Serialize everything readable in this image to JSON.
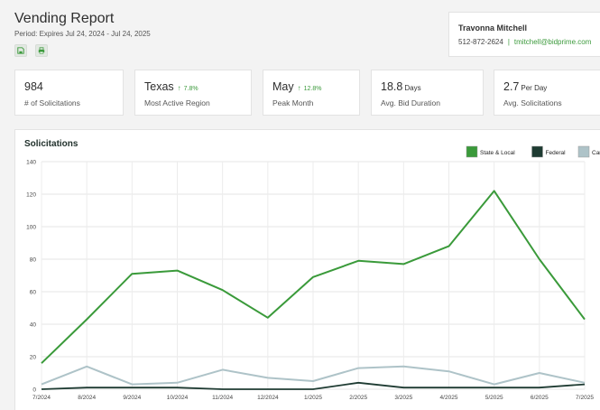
{
  "header": {
    "title": "Vending Report",
    "period": "Period: Expires Jul 24, 2024 - Jul 24, 2025",
    "save_icon": "save-icon",
    "print_icon": "print-icon"
  },
  "contact": {
    "name": "Travonna Mitchell",
    "phone": "512-872-2624",
    "separator": "|",
    "email": "tmitchell@bidprime.com"
  },
  "stats": [
    {
      "value": "984",
      "unit": "",
      "delta": "",
      "label": "# of Solicitations"
    },
    {
      "value": "Texas",
      "unit": "",
      "delta": "7.8%",
      "label": "Most Active Region"
    },
    {
      "value": "May",
      "unit": "",
      "delta": "12.8%",
      "label": "Peak Month"
    },
    {
      "value": "18.8",
      "unit": "Days",
      "delta": "",
      "label": "Avg. Bid Duration"
    },
    {
      "value": "2.7",
      "unit": "Per Day",
      "delta": "",
      "label": "Avg. Solicitations"
    }
  ],
  "colors": {
    "accent": "#3c9a3c",
    "state_local": "#3a9a3a",
    "federal": "#1e3b32",
    "canada": "#aec3c8"
  },
  "chart_data": {
    "type": "line",
    "title": "Solicitations",
    "categories": [
      "7/2024",
      "8/2024",
      "9/2024",
      "10/2024",
      "11/2024",
      "12/2024",
      "1/2025",
      "2/2025",
      "3/2025",
      "4/2025",
      "5/2025",
      "6/2025",
      "7/2025"
    ],
    "series": [
      {
        "name": "State & Local",
        "values": [
          16,
          43,
          71,
          73,
          61,
          44,
          69,
          79,
          77,
          88,
          122,
          80,
          43
        ]
      },
      {
        "name": "Federal",
        "values": [
          0,
          1,
          1,
          1,
          0,
          0,
          0,
          4,
          1,
          1,
          1,
          1,
          3
        ]
      },
      {
        "name": "Canada",
        "values": [
          3,
          14,
          3,
          4,
          12,
          7,
          5,
          13,
          14,
          11,
          3,
          10,
          4
        ]
      }
    ],
    "ylim": [
      0,
      140
    ],
    "yticks": [
      0,
      20,
      40,
      60,
      80,
      100,
      120,
      140
    ],
    "grid": true,
    "legend": "top-right"
  }
}
